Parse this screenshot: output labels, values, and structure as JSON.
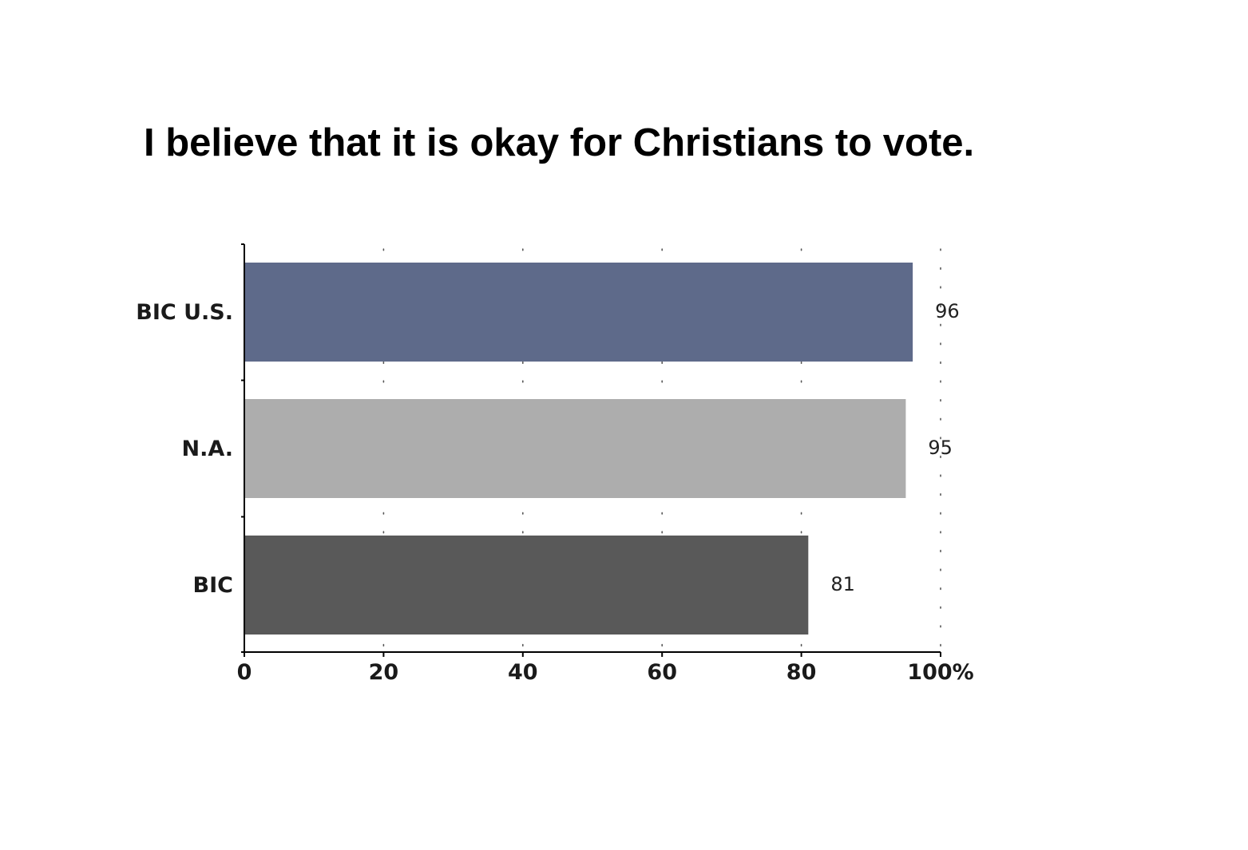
{
  "chart_data": {
    "type": "bar",
    "orientation": "horizontal",
    "title": "I believe that it is okay for Christians to vote.",
    "xlabel": "",
    "ylabel": "",
    "categories": [
      "BIC U.S.",
      "N.A.",
      "BIC"
    ],
    "values": [
      96,
      95,
      81
    ],
    "value_labels": [
      "96",
      "95",
      "81"
    ],
    "bar_colors": [
      "#5e6a8a",
      "#adadad",
      "#595959"
    ],
    "xlim": [
      0,
      100
    ],
    "x_ticks": [
      0,
      20,
      40,
      60,
      80,
      100
    ],
    "x_tick_labels": [
      "0",
      "20",
      "40",
      "60",
      "80",
      "100%"
    ],
    "grid": "vertical dotted",
    "legend": "none"
  }
}
